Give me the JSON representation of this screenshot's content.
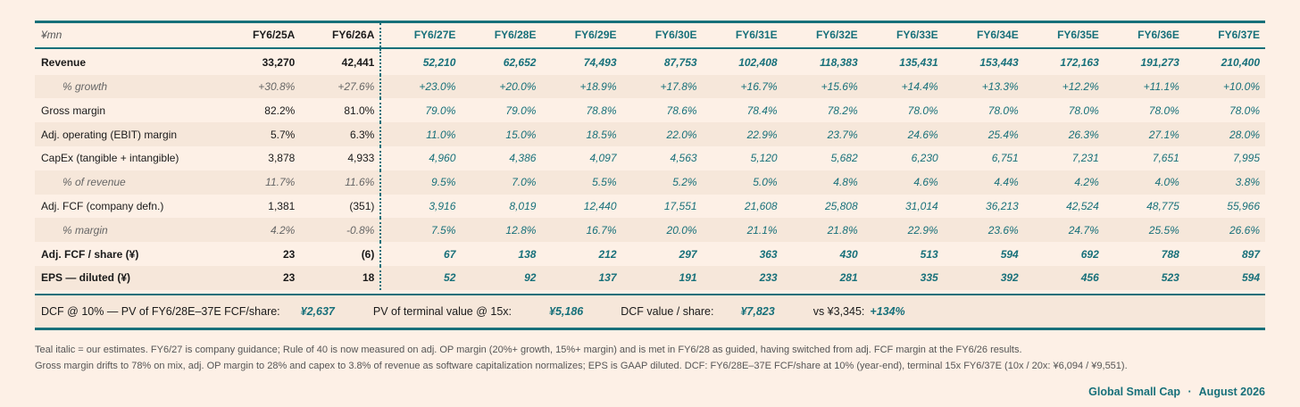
{
  "table": {
    "unit_label": "¥mn",
    "headers": [
      {
        "label": "FY6/25A",
        "est": false
      },
      {
        "label": "FY6/26A",
        "est": false
      },
      {
        "label": "FY6/27E",
        "est": true
      },
      {
        "label": "FY6/28E",
        "est": true
      },
      {
        "label": "FY6/29E",
        "est": true
      },
      {
        "label": "FY6/30E",
        "est": true
      },
      {
        "label": "FY6/31E",
        "est": true
      },
      {
        "label": "FY6/32E",
        "est": true
      },
      {
        "label": "FY6/33E",
        "est": true
      },
      {
        "label": "FY6/34E",
        "est": true
      },
      {
        "label": "FY6/35E",
        "est": true
      },
      {
        "label": "FY6/36E",
        "est": true
      },
      {
        "label": "FY6/37E",
        "est": true
      }
    ],
    "rows": [
      {
        "label": "Revenue",
        "values": [
          "33,270",
          "42,441",
          "52,210",
          "62,652",
          "74,493",
          "87,753",
          "102,408",
          "118,383",
          "135,431",
          "153,443",
          "172,163",
          "191,273",
          "210,400"
        ]
      },
      {
        "label": "% growth",
        "values": [
          "+30.8%",
          "+27.6%",
          "+23.0%",
          "+20.0%",
          "+18.9%",
          "+17.8%",
          "+16.7%",
          "+15.6%",
          "+14.4%",
          "+13.3%",
          "+12.2%",
          "+11.1%",
          "+10.0%"
        ]
      },
      {
        "label": "Gross margin",
        "values": [
          "82.2%",
          "81.0%",
          "79.0%",
          "79.0%",
          "78.8%",
          "78.6%",
          "78.4%",
          "78.2%",
          "78.0%",
          "78.0%",
          "78.0%",
          "78.0%",
          "78.0%"
        ]
      },
      {
        "label": "Adj. operating (EBIT) margin",
        "values": [
          "5.7%",
          "6.3%",
          "11.0%",
          "15.0%",
          "18.5%",
          "22.0%",
          "22.9%",
          "23.7%",
          "24.6%",
          "25.4%",
          "26.3%",
          "27.1%",
          "28.0%"
        ]
      },
      {
        "label": "CapEx (tangible + intangible)",
        "values": [
          "3,878",
          "4,933",
          "4,960",
          "4,386",
          "4,097",
          "4,563",
          "5,120",
          "5,682",
          "6,230",
          "6,751",
          "7,231",
          "7,651",
          "7,995"
        ]
      },
      {
        "label": "% of revenue",
        "values": [
          "11.7%",
          "11.6%",
          "9.5%",
          "7.0%",
          "5.5%",
          "5.2%",
          "5.0%",
          "4.8%",
          "4.6%",
          "4.4%",
          "4.2%",
          "4.0%",
          "3.8%"
        ]
      },
      {
        "label": "Adj. FCF (company defn.)",
        "values": [
          "1,381",
          "(351)",
          "3,916",
          "8,019",
          "12,440",
          "17,551",
          "21,608",
          "25,808",
          "31,014",
          "36,213",
          "42,524",
          "48,775",
          "55,966"
        ]
      },
      {
        "label": "% margin",
        "values": [
          "4.2%",
          "-0.8%",
          "7.5%",
          "12.8%",
          "16.7%",
          "20.0%",
          "21.1%",
          "21.8%",
          "22.9%",
          "23.6%",
          "24.7%",
          "25.5%",
          "26.6%"
        ]
      },
      {
        "label": "Adj. FCF / share (¥)",
        "values": [
          "23",
          "(6)",
          "67",
          "138",
          "212",
          "297",
          "363",
          "430",
          "513",
          "594",
          "692",
          "788",
          "897"
        ]
      },
      {
        "label": "EPS — diluted (¥)",
        "values": [
          "23",
          "18",
          "52",
          "92",
          "137",
          "191",
          "233",
          "281",
          "335",
          "392",
          "456",
          "523",
          "594"
        ]
      }
    ]
  },
  "dcf": {
    "pv_label": "DCF @ 10% — PV of FY6/28E–37E FCF/share:",
    "pv_value": "¥2,637",
    "tv_label": "PV of terminal value @ 15x:",
    "tv_value": "¥5,186",
    "dcf_label": "DCF value / share:",
    "dcf_value": "¥7,823",
    "vs_label": "vs ¥3,345:",
    "vs_value": "+134%"
  },
  "notes": {
    "line1": "Teal italic = our estimates. FY6/27 is company guidance; Rule of 40 is now measured on adj. OP margin (20%+ growth, 15%+ margin) and is met in FY6/28 as guided, having switched from adj. FCF margin at the FY6/26 results.",
    "line2": "Gross margin drifts to 78% on mix, adj. OP margin to 28% and capex to 3.8% of revenue as software capitalization normalizes; EPS is GAAP diluted. DCF: FY6/28E–37E FCF/share at 10% (year-end), terminal 15x FY6/37E (10x / 20x: ¥6,094 / ¥9,551)."
  },
  "footer": {
    "publisher": "Global Small Cap",
    "separator": "·",
    "date": "August 2026"
  },
  "colors": {
    "accent": "#17707a",
    "background": "#fdf0e6",
    "shade": "#f6e7da"
  }
}
